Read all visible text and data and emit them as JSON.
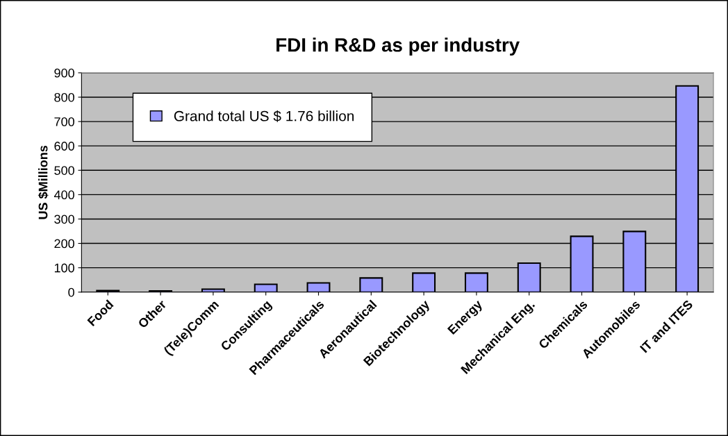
{
  "chart_data": {
    "type": "bar",
    "title": "FDI in R&D as per industry",
    "ylabel": "US $Millions",
    "categories": [
      "Food",
      "Other",
      "(Tele)Comm",
      "Consulting",
      "Pharmaceuticals",
      "Aeronautical",
      "Biotechnology",
      "Energy",
      "Mechanical Eng.",
      "Chemicals",
      "Automobiles",
      "IT and ITES"
    ],
    "series": [
      {
        "name": "Grand total US $ 1.76 billion",
        "color": "#9999ff",
        "values": [
          6,
          5,
          12,
          32,
          38,
          58,
          78,
          78,
          119,
          229,
          249,
          846
        ]
      }
    ],
    "ylim": [
      0,
      900
    ],
    "yticks": [
      0,
      100,
      200,
      300,
      400,
      500,
      600,
      700,
      800,
      900
    ],
    "grid": "y",
    "legend": "top left"
  }
}
